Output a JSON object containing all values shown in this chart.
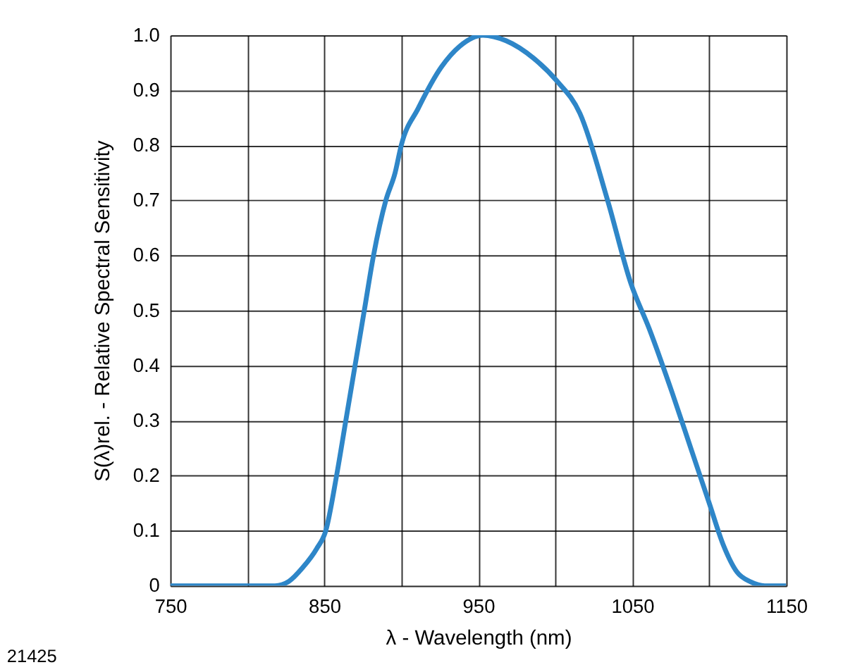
{
  "chart_data": {
    "type": "line",
    "xlabel": "λ - Wavelength (nm)",
    "ylabel": "S(λ)rel. - Relative Spectral Sensitivity",
    "annotations": [
      "21425"
    ],
    "x": [
      750,
      818,
      827,
      836,
      845,
      851,
      858,
      864,
      870,
      876,
      882,
      890,
      896,
      900,
      911,
      926,
      938,
      953,
      968,
      986,
      1001,
      1016,
      1034,
      1049,
      1061,
      1076,
      1088,
      1100,
      1109,
      1118,
      1127,
      1136,
      1150
    ],
    "series": [
      {
        "color": "#2e86c8",
        "values": [
          0,
          0,
          0.008,
          0.033,
          0.067,
          0.1,
          0.2,
          0.3,
          0.4,
          0.5,
          0.6,
          0.7,
          0.75,
          0.8,
          0.867,
          0.942,
          0.98,
          1.0,
          0.99,
          0.958,
          0.917,
          0.858,
          0.7,
          0.55,
          0.467,
          0.35,
          0.25,
          0.15,
          0.075,
          0.025,
          0.007,
          0,
          0
        ]
      }
    ],
    "xlim": [
      750,
      1150
    ],
    "xticks": [
      750,
      {
        "value": 800,
        "label": null
      },
      850,
      {
        "value": 900,
        "label": null
      },
      950,
      {
        "value": 1000,
        "label": null
      },
      1050,
      {
        "value": 1100,
        "label": null
      },
      1150
    ],
    "ylim": [
      0,
      1
    ],
    "yticks": [
      0,
      0.1,
      0.2,
      0.3,
      0.4,
      0.5,
      0.6,
      0.7,
      0.8,
      0.9,
      {
        "value": 1,
        "label": "1.0"
      }
    ],
    "grid": true,
    "marker": "none",
    "line_style": "solid",
    "legend": false
  }
}
